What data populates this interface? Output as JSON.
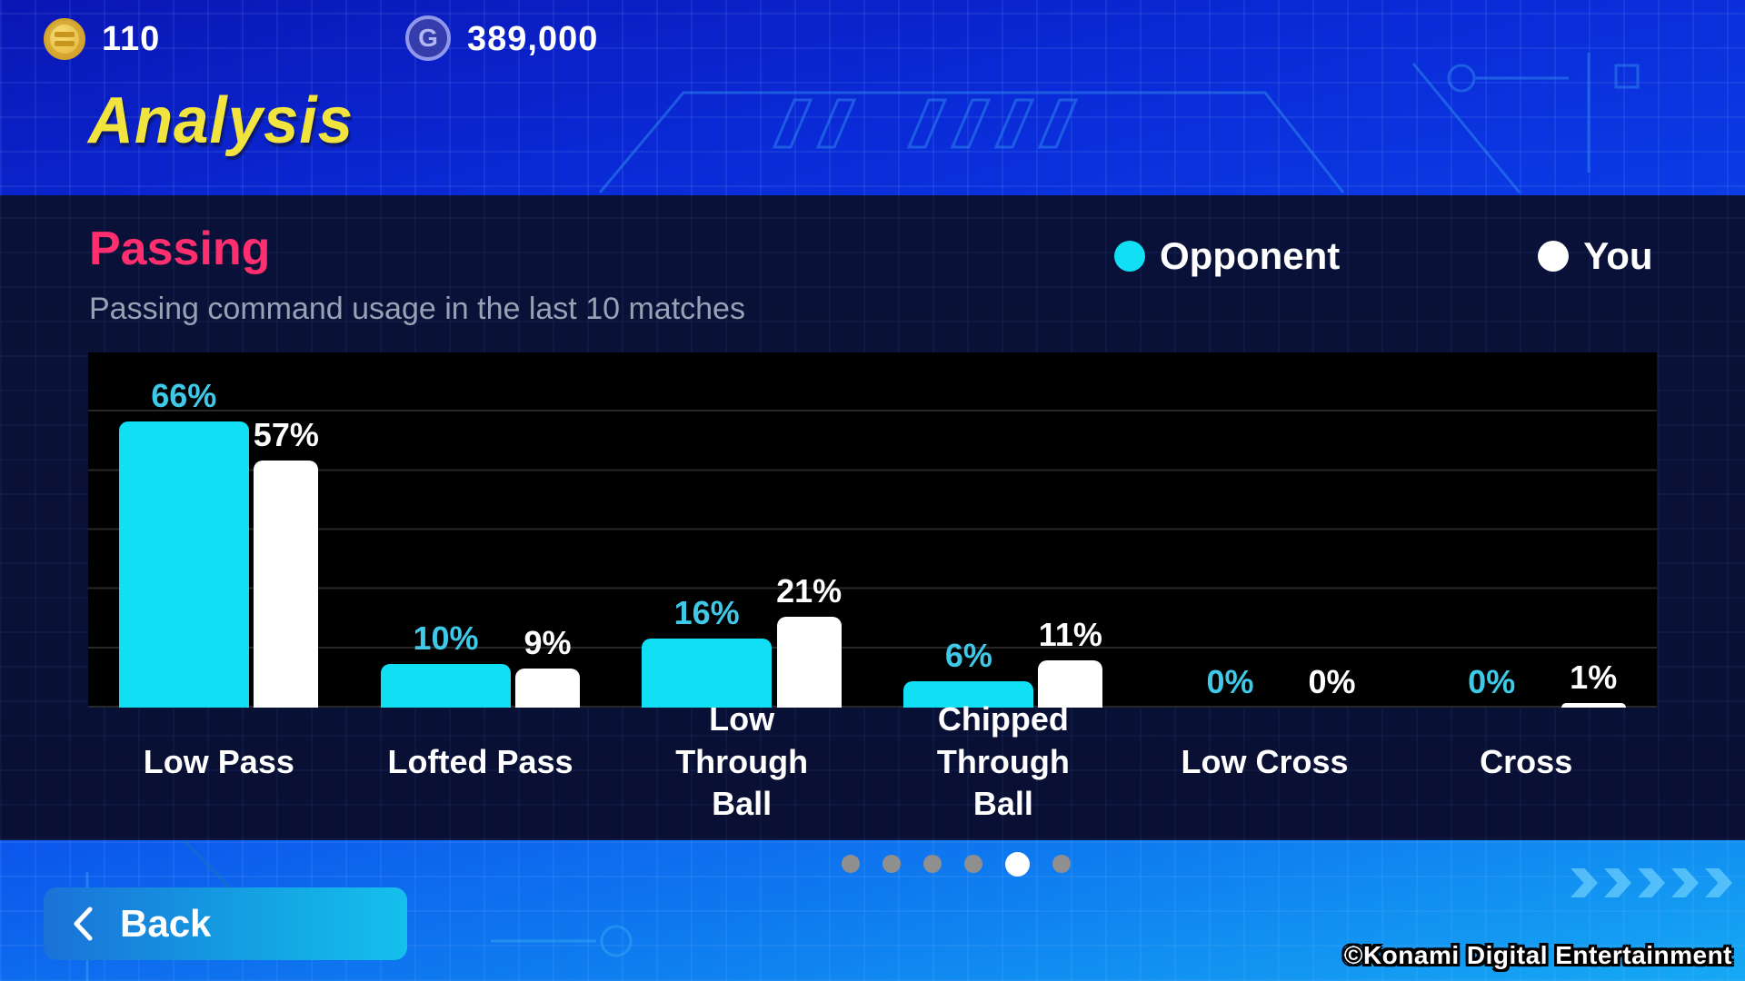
{
  "currency": {
    "coins": "110",
    "gp": "389,000",
    "gp_symbol": "G"
  },
  "page_title": "Analysis",
  "panel": {
    "section_title": "Passing",
    "subtitle": "Passing command usage in the last 10 matches"
  },
  "chart_data": {
    "type": "bar",
    "title": "Passing command usage in the last 10 matches",
    "categories": [
      "Low Pass",
      "Lofted Pass",
      "Low Through Ball",
      "Chipped Through Ball",
      "Low Cross",
      "Cross"
    ],
    "series": [
      {
        "name": "Opponent",
        "color": "#10dff4",
        "label_color": "#3ec9e9",
        "values": [
          66,
          10,
          16,
          6,
          0,
          0
        ]
      },
      {
        "name": "You",
        "color": "#ffffff",
        "label_color": "#ffffff",
        "values": [
          57,
          9,
          21,
          11,
          0,
          1
        ]
      }
    ],
    "unit": "%",
    "ylim": [
      0,
      82
    ],
    "gridlines": 6,
    "grid": true,
    "legend_position": "top-right",
    "plot_background": "#000000"
  },
  "pagination": {
    "count": 6,
    "active_index": 4
  },
  "back_button": {
    "label": "Back"
  },
  "footer": {
    "copyright": "©Konami Digital Entertainment"
  }
}
